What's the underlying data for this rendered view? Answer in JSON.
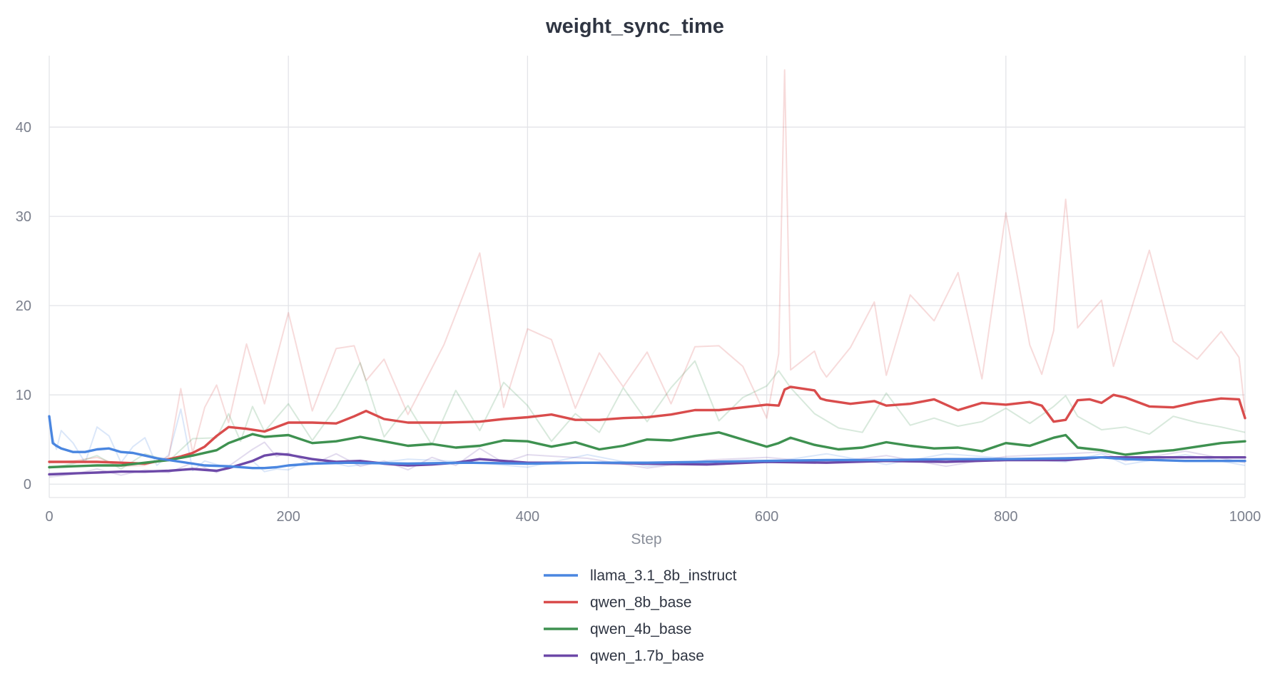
{
  "chart_data": {
    "type": "line",
    "title": "weight_sync_time",
    "xlabel": "Step",
    "ylabel": "",
    "xlim": [
      0,
      1000
    ],
    "ylim": [
      -1.5,
      48
    ],
    "x_ticks": [
      0,
      200,
      400,
      600,
      800,
      1000
    ],
    "y_ticks": [
      0,
      10,
      20,
      30,
      40
    ],
    "grid": true,
    "legend_position": "bottom-center",
    "smoothed": true,
    "series": [
      {
        "name": "llama_3.1_8b_instruct",
        "color": "#4a86e0",
        "x": [
          0,
          3,
          6,
          10,
          20,
          30,
          40,
          50,
          60,
          70,
          80,
          90,
          100,
          110,
          120,
          130,
          150,
          170,
          180,
          190,
          200,
          220,
          250,
          300,
          350,
          400,
          450,
          500,
          550,
          600,
          650,
          700,
          750,
          800,
          850,
          880,
          900,
          950,
          1000
        ],
        "values": [
          7.6,
          4.6,
          4.3,
          4.0,
          3.6,
          3.6,
          3.9,
          4.0,
          3.6,
          3.5,
          3.2,
          2.9,
          2.7,
          2.5,
          2.3,
          2.1,
          2.0,
          1.8,
          1.8,
          1.9,
          2.1,
          2.3,
          2.4,
          2.3,
          2.4,
          2.3,
          2.4,
          2.4,
          2.5,
          2.6,
          2.7,
          2.7,
          2.8,
          2.8,
          2.9,
          3.0,
          2.8,
          2.6,
          2.6
        ],
        "raw": [
          7.6,
          5.2,
          3.9,
          6.0,
          4.6,
          2.4,
          6.4,
          5.4,
          2.4,
          4.2,
          5.2,
          2.1,
          3.3,
          8.4,
          1.5,
          2.6,
          1.8,
          2.6,
          1.4,
          1.7,
          1.6,
          2.9,
          2.0,
          2.8,
          2.5,
          1.9,
          3.3,
          2.0,
          2.6,
          2.4,
          3.4,
          2.2,
          3.4,
          2.9,
          2.5,
          3.4,
          2.2,
          3.3,
          2.1
        ]
      },
      {
        "name": "qwen_8b_base",
        "color": "#d94c4c",
        "x": [
          0,
          20,
          40,
          60,
          80,
          100,
          110,
          120,
          130,
          140,
          150,
          165,
          180,
          200,
          220,
          240,
          255,
          265,
          280,
          300,
          330,
          360,
          380,
          400,
          420,
          440,
          460,
          480,
          500,
          520,
          540,
          560,
          580,
          600,
          610,
          615,
          620,
          640,
          645,
          650,
          670,
          690,
          700,
          720,
          740,
          760,
          780,
          800,
          820,
          830,
          840,
          850,
          860,
          870,
          880,
          890,
          900,
          920,
          940,
          960,
          980,
          995,
          1000
        ],
        "values": [
          2.5,
          2.5,
          2.5,
          2.4,
          2.3,
          2.8,
          3.1,
          3.5,
          4.2,
          5.4,
          6.4,
          6.2,
          5.9,
          6.9,
          6.9,
          6.8,
          7.6,
          8.2,
          7.3,
          6.9,
          6.9,
          7.0,
          7.3,
          7.5,
          7.8,
          7.2,
          7.2,
          7.4,
          7.5,
          7.8,
          8.3,
          8.3,
          8.6,
          8.9,
          8.8,
          10.6,
          10.9,
          10.5,
          9.6,
          9.4,
          9.0,
          9.3,
          8.8,
          9.0,
          9.5,
          8.3,
          9.1,
          8.9,
          9.2,
          8.8,
          7.0,
          7.2,
          9.4,
          9.5,
          9.1,
          10.0,
          9.7,
          8.7,
          8.6,
          9.2,
          9.6,
          9.5,
          7.4
        ],
        "raw": [
          2.4,
          2.6,
          3.0,
          2.0,
          2.1,
          3.1,
          10.7,
          3.5,
          8.6,
          11.1,
          6.9,
          15.7,
          9.0,
          19.2,
          8.2,
          15.2,
          15.5,
          11.6,
          14.0,
          7.8,
          15.6,
          25.9,
          8.6,
          17.4,
          16.2,
          8.5,
          14.7,
          10.9,
          14.8,
          9.0,
          15.4,
          15.5,
          13.2,
          7.4,
          14.6,
          46.4,
          12.8,
          14.9,
          13.0,
          12.0,
          15.3,
          20.4,
          12.2,
          21.2,
          18.3,
          23.7,
          11.8,
          30.4,
          15.6,
          12.3,
          17.2,
          31.9,
          17.5,
          19.1,
          20.6,
          13.2,
          17.5,
          26.2,
          16.0,
          14.0,
          17.1,
          14.2,
          8.1
        ]
      },
      {
        "name": "qwen_4b_base",
        "color": "#3e9150",
        "x": [
          0,
          20,
          40,
          60,
          80,
          100,
          120,
          140,
          150,
          160,
          170,
          180,
          200,
          220,
          240,
          260,
          280,
          300,
          320,
          340,
          360,
          380,
          400,
          420,
          440,
          460,
          480,
          500,
          520,
          540,
          560,
          580,
          600,
          610,
          620,
          640,
          660,
          680,
          700,
          720,
          740,
          760,
          780,
          800,
          820,
          840,
          850,
          860,
          880,
          900,
          920,
          940,
          960,
          980,
          1000
        ],
        "values": [
          1.9,
          2.0,
          2.1,
          2.1,
          2.4,
          2.7,
          3.2,
          3.8,
          4.6,
          5.1,
          5.6,
          5.3,
          5.5,
          4.6,
          4.8,
          5.3,
          4.8,
          4.3,
          4.5,
          4.1,
          4.3,
          4.9,
          4.8,
          4.2,
          4.7,
          3.9,
          4.3,
          5.0,
          4.9,
          5.4,
          5.8,
          5.0,
          4.2,
          4.6,
          5.2,
          4.4,
          3.9,
          4.1,
          4.7,
          4.3,
          4.0,
          4.1,
          3.7,
          4.6,
          4.3,
          5.2,
          5.5,
          4.1,
          3.8,
          3.3,
          3.6,
          3.8,
          4.2,
          4.6,
          4.8
        ],
        "raw": [
          1.8,
          2.3,
          3.2,
          1.7,
          3.4,
          2.6,
          5.1,
          5.2,
          7.9,
          4.8,
          8.7,
          5.9,
          9.0,
          4.9,
          8.6,
          13.6,
          5.3,
          8.8,
          4.4,
          10.5,
          6.0,
          11.4,
          8.8,
          4.8,
          7.9,
          5.8,
          10.8,
          7.0,
          10.8,
          13.8,
          7.1,
          9.7,
          11.0,
          12.7,
          10.8,
          7.9,
          6.3,
          5.8,
          10.2,
          6.6,
          7.4,
          6.5,
          7.0,
          8.5,
          6.8,
          8.7,
          9.9,
          7.6,
          6.1,
          6.4,
          5.6,
          7.6,
          6.9,
          6.4,
          5.8
        ]
      },
      {
        "name": "qwen_1.7b_base",
        "color": "#6d49a8",
        "x": [
          0,
          20,
          40,
          60,
          80,
          100,
          120,
          140,
          150,
          170,
          180,
          190,
          200,
          220,
          240,
          260,
          280,
          300,
          320,
          340,
          360,
          380,
          400,
          450,
          500,
          550,
          600,
          650,
          700,
          750,
          800,
          850,
          880,
          900,
          950,
          1000
        ],
        "values": [
          1.1,
          1.2,
          1.3,
          1.4,
          1.4,
          1.5,
          1.7,
          1.5,
          1.8,
          2.6,
          3.2,
          3.4,
          3.3,
          2.8,
          2.5,
          2.6,
          2.3,
          2.1,
          2.2,
          2.4,
          2.8,
          2.6,
          2.4,
          2.4,
          2.3,
          2.2,
          2.5,
          2.4,
          2.6,
          2.5,
          2.7,
          2.7,
          3.0,
          3.0,
          3.0,
          3.0
        ],
        "raw": [
          0.8,
          1.1,
          1.7,
          1.0,
          1.6,
          1.3,
          2.4,
          1.3,
          2.0,
          3.9,
          4.7,
          3.1,
          3.5,
          2.2,
          3.4,
          2.0,
          2.6,
          1.6,
          3.0,
          2.1,
          4.0,
          2.4,
          3.3,
          2.9,
          1.8,
          2.7,
          3.0,
          2.4,
          3.2,
          2.0,
          3.1,
          3.4,
          3.6,
          2.6,
          3.7,
          2.4
        ]
      }
    ]
  }
}
